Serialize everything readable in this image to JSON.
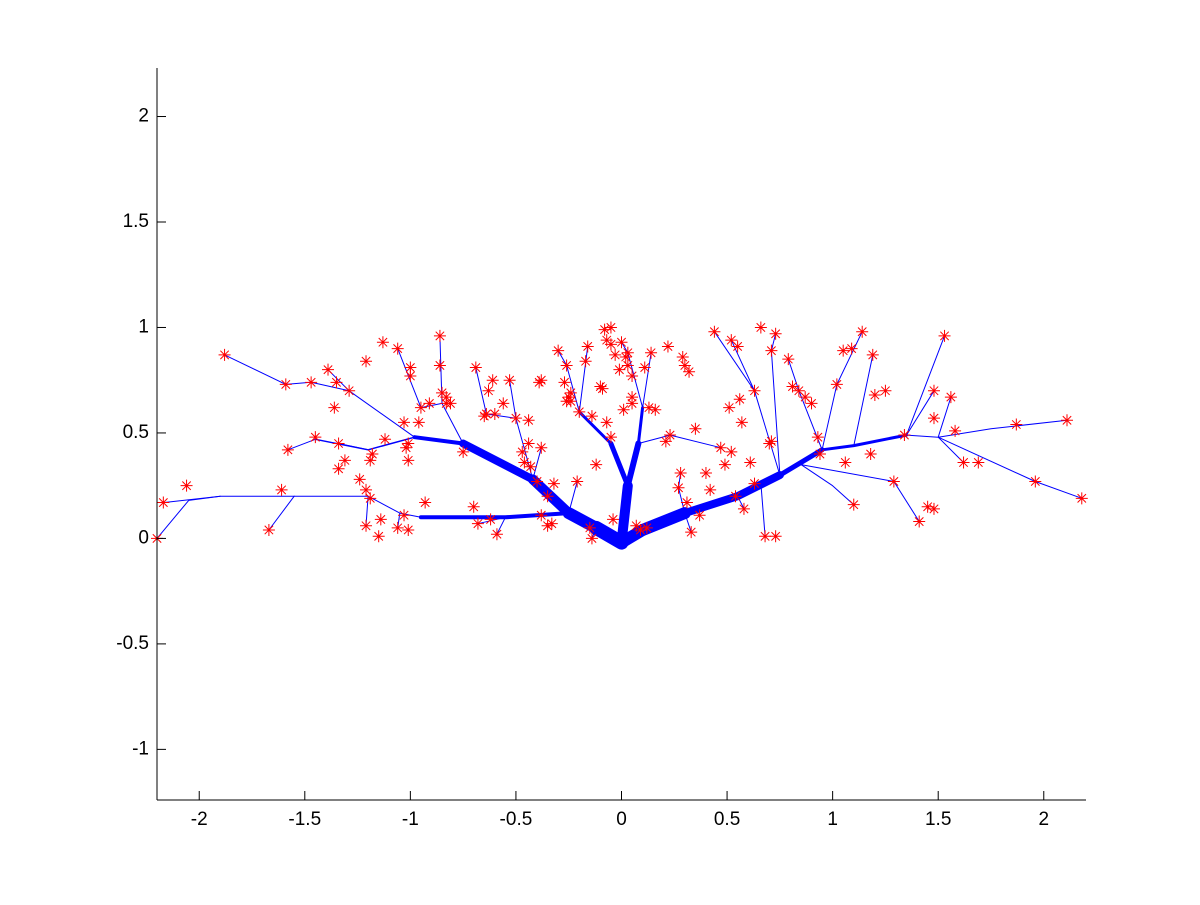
{
  "chart_data": {
    "type": "tree",
    "xlim": [
      -2.2,
      2.2
    ],
    "ylim": [
      -1.24,
      2.23
    ],
    "xticks": [
      -2,
      -1.5,
      -1,
      -0.5,
      0,
      0.5,
      1,
      1.5,
      2
    ],
    "yticks": [
      -1,
      -0.5,
      0,
      0.5,
      1,
      1.5,
      2
    ],
    "branch_color": "#0000ff",
    "branches": [
      {
        "x": [
          0,
          -0.12
        ],
        "y": [
          -0.02,
          0.05
        ],
        "width": 14
      },
      {
        "x": [
          -0.12,
          -0.25
        ],
        "y": [
          0.05,
          0.12
        ],
        "width": 12
      },
      {
        "x": [
          -0.25,
          -0.42
        ],
        "y": [
          0.12,
          0.28
        ],
        "width": 10
      },
      {
        "x": [
          -0.42,
          -0.75
        ],
        "y": [
          0.28,
          0.45
        ],
        "width": 8
      },
      {
        "x": [
          -0.75,
          -0.98
        ],
        "y": [
          0.45,
          0.48
        ],
        "width": 4
      },
      {
        "x": [
          -0.98,
          -1.2,
          -1.45
        ],
        "y": [
          0.48,
          0.42,
          0.47
        ],
        "width": 1.5
      },
      {
        "x": [
          -0.25,
          -0.55,
          -0.95
        ],
        "y": [
          0.12,
          0.1,
          0.1
        ],
        "width": 4
      },
      {
        "x": [
          -0.95,
          -1.05,
          -1.2,
          -1.55,
          -1.9,
          -2.05,
          -2.2
        ],
        "y": [
          0.1,
          0.12,
          0.2,
          0.2,
          0.2,
          0.18,
          0.0
        ],
        "width": 1
      },
      {
        "x": [
          0,
          0.1,
          0.3
        ],
        "y": [
          -0.02,
          0.04,
          0.12
        ],
        "width": 12
      },
      {
        "x": [
          0.3,
          0.55,
          0.75
        ],
        "y": [
          0.12,
          0.2,
          0.3
        ],
        "width": 8
      },
      {
        "x": [
          0.75,
          0.95
        ],
        "y": [
          0.3,
          0.42
        ],
        "width": 5
      },
      {
        "x": [
          0.95,
          1.1,
          1.35
        ],
        "y": [
          0.42,
          0.44,
          0.49
        ],
        "width": 3
      },
      {
        "x": [
          1.35,
          1.5,
          1.75,
          2.11
        ],
        "y": [
          0.49,
          0.48,
          0.52,
          0.56
        ],
        "width": 1
      },
      {
        "x": [
          1.5,
          1.96,
          2.18
        ],
        "y": [
          0.48,
          0.27,
          0.19
        ],
        "width": 1
      },
      {
        "x": [
          0,
          0.03
        ],
        "y": [
          -0.02,
          0.25
        ],
        "width": 10
      },
      {
        "x": [
          0.03,
          0.08
        ],
        "y": [
          0.25,
          0.45
        ],
        "width": 6
      },
      {
        "x": [
          0.08,
          0.1
        ],
        "y": [
          0.45,
          0.62
        ],
        "width": 3
      },
      {
        "x": [
          0.03,
          -0.05
        ],
        "y": [
          0.25,
          0.45
        ],
        "width": 5
      },
      {
        "x": [
          -0.05,
          -0.2
        ],
        "y": [
          0.45,
          0.6
        ],
        "width": 3
      },
      {
        "x": [
          -0.75,
          -0.85,
          -0.86
        ],
        "y": [
          0.45,
          0.64,
          0.96
        ],
        "width": 1
      },
      {
        "x": [
          -0.85,
          -0.95,
          -1.06
        ],
        "y": [
          0.64,
          0.62,
          0.9
        ],
        "width": 1
      },
      {
        "x": [
          -0.98,
          -1.29,
          -1.39
        ],
        "y": [
          0.48,
          0.7,
          0.8
        ],
        "width": 1
      },
      {
        "x": [
          -1.29,
          -1.47,
          -1.59,
          -1.88
        ],
        "y": [
          0.7,
          0.74,
          0.73,
          0.87
        ],
        "width": 1
      },
      {
        "x": [
          -1.2,
          -1.34
        ],
        "y": [
          0.42,
          0.45
        ],
        "width": 1
      },
      {
        "x": [
          -1.45,
          -1.58
        ],
        "y": [
          0.47,
          0.42
        ],
        "width": 1
      },
      {
        "x": [
          -1.2,
          -1.21
        ],
        "y": [
          0.2,
          0.06
        ],
        "width": 1
      },
      {
        "x": [
          -1.05,
          -1.06
        ],
        "y": [
          0.12,
          0.05
        ],
        "width": 1
      },
      {
        "x": [
          -1.9,
          -2.17
        ],
        "y": [
          0.2,
          0.17
        ],
        "width": 1
      },
      {
        "x": [
          -1.55,
          -1.67
        ],
        "y": [
          0.2,
          0.04
        ],
        "width": 1
      },
      {
        "x": [
          -0.42,
          -0.5,
          -0.53
        ],
        "y": [
          0.28,
          0.57,
          0.75
        ],
        "width": 1
      },
      {
        "x": [
          -0.5,
          -0.64,
          -0.69
        ],
        "y": [
          0.57,
          0.59,
          0.81
        ],
        "width": 1
      },
      {
        "x": [
          -0.55,
          -0.68
        ],
        "y": [
          0.1,
          0.07
        ],
        "width": 1
      },
      {
        "x": [
          -0.55,
          -0.59
        ],
        "y": [
          0.1,
          0.02
        ],
        "width": 1
      },
      {
        "x": [
          -0.25,
          -0.21
        ],
        "y": [
          0.12,
          0.27
        ],
        "width": 1
      },
      {
        "x": [
          -0.42,
          -0.38
        ],
        "y": [
          0.28,
          0.43
        ],
        "width": 1
      },
      {
        "x": [
          -0.2,
          -0.26,
          -0.3
        ],
        "y": [
          0.6,
          0.82,
          0.89
        ],
        "width": 1
      },
      {
        "x": [
          -0.2,
          -0.16
        ],
        "y": [
          0.6,
          0.91
        ],
        "width": 1
      },
      {
        "x": [
          0.1,
          0.14
        ],
        "y": [
          0.62,
          0.88
        ],
        "width": 1
      },
      {
        "x": [
          0.1,
          0.03,
          0.0
        ],
        "y": [
          0.62,
          0.88,
          0.93
        ],
        "width": 1
      },
      {
        "x": [
          0.08,
          0.23,
          0.47
        ],
        "y": [
          0.45,
          0.49,
          0.43
        ],
        "width": 1
      },
      {
        "x": [
          0.3,
          0.27,
          0.28
        ],
        "y": [
          0.12,
          0.24,
          0.31
        ],
        "width": 1
      },
      {
        "x": [
          0.3,
          0.33
        ],
        "y": [
          0.12,
          0.03
        ],
        "width": 1
      },
      {
        "x": [
          0.55,
          0.58
        ],
        "y": [
          0.2,
          0.14
        ],
        "width": 1
      },
      {
        "x": [
          0.75,
          0.63,
          0.44
        ],
        "y": [
          0.3,
          0.7,
          0.98
        ],
        "width": 1
      },
      {
        "x": [
          0.63,
          0.52
        ],
        "y": [
          0.7,
          0.94
        ],
        "width": 1
      },
      {
        "x": [
          0.75,
          0.71,
          0.73
        ],
        "y": [
          0.3,
          0.89,
          0.97
        ],
        "width": 1
      },
      {
        "x": [
          0.95,
          1.02,
          1.14
        ],
        "y": [
          0.42,
          0.73,
          0.98
        ],
        "width": 1
      },
      {
        "x": [
          0.95,
          0.84,
          0.79
        ],
        "y": [
          0.42,
          0.7,
          0.85
        ],
        "width": 1
      },
      {
        "x": [
          1.1,
          1.19
        ],
        "y": [
          0.44,
          0.87
        ],
        "width": 1
      },
      {
        "x": [
          1.35,
          1.53
        ],
        "y": [
          0.49,
          0.96
        ],
        "width": 1
      },
      {
        "x": [
          1.35,
          1.48
        ],
        "y": [
          0.49,
          0.7
        ],
        "width": 1
      },
      {
        "x": [
          1.5,
          1.62
        ],
        "y": [
          0.48,
          0.36
        ],
        "width": 1
      },
      {
        "x": [
          0.85,
          1.29,
          1.41
        ],
        "y": [
          0.35,
          0.27,
          0.08
        ],
        "width": 1
      },
      {
        "x": [
          0.85,
          1.0,
          1.1
        ],
        "y": [
          0.35,
          0.25,
          0.16
        ],
        "width": 1
      },
      {
        "x": [
          1.5,
          1.56
        ],
        "y": [
          0.48,
          0.67
        ],
        "width": 1
      },
      {
        "x": [
          0.66,
          0.68
        ],
        "y": [
          0.26,
          0.01
        ],
        "width": 1
      },
      {
        "x": [
          -0.12,
          -0.14
        ],
        "y": [
          0.05,
          0.0
        ],
        "width": 1
      }
    ],
    "points": {
      "color": "#ff0000",
      "x": [
        -2.2,
        -2.17,
        -2.06,
        -1.88,
        -1.67,
        -1.61,
        -1.59,
        -1.58,
        -1.47,
        -1.45,
        -1.39,
        -1.36,
        -1.35,
        -1.34,
        -1.34,
        -1.31,
        -1.29,
        -1.24,
        -1.21,
        -1.21,
        -1.19,
        -1.19,
        -1.18,
        -1.21,
        -1.15,
        -1.14,
        -1.13,
        -1.12,
        -1.06,
        -1.06,
        -1.03,
        -1.03,
        -1.02,
        -1.01,
        -1.01,
        -1.01,
        -1.0,
        -1.0,
        -0.96,
        -0.95,
        -0.93,
        -0.91,
        -0.86,
        -0.86,
        -0.85,
        -0.83,
        -0.83,
        -0.81,
        -0.75,
        -0.7,
        -0.69,
        -0.68,
        -0.65,
        -0.64,
        -0.63,
        -0.62,
        -0.61,
        -0.6,
        -0.59,
        -0.56,
        -0.53,
        -0.5,
        -0.47,
        -0.46,
        -0.44,
        -0.44,
        -0.43,
        -0.4,
        -0.39,
        -0.38,
        -0.38,
        -0.38,
        -0.35,
        -0.35,
        -0.33,
        -0.32,
        -0.3,
        -0.27,
        -0.26,
        -0.26,
        -0.25,
        -0.24,
        -0.24,
        -0.21,
        -0.2,
        -0.17,
        -0.16,
        -0.15,
        -0.14,
        -0.14,
        -0.12,
        -0.1,
        -0.09,
        -0.08,
        -0.07,
        -0.07,
        -0.05,
        -0.05,
        -0.05,
        -0.04,
        -0.03,
        -0.01,
        0.0,
        0.01,
        0.02,
        0.03,
        0.03,
        0.05,
        0.05,
        0.05,
        0.07,
        0.09,
        0.11,
        0.12,
        0.14,
        0.13,
        0.16,
        0.22,
        0.21,
        0.23,
        0.27,
        0.29,
        0.28,
        0.31,
        0.3,
        0.32,
        0.33,
        0.35,
        0.37,
        0.4,
        0.42,
        0.44,
        0.47,
        0.49,
        0.51,
        0.52,
        0.52,
        0.55,
        0.54,
        0.56,
        0.57,
        0.58,
        0.61,
        0.63,
        0.63,
        0.66,
        0.68,
        0.7,
        0.71,
        0.71,
        0.73,
        0.73,
        0.79,
        0.81,
        0.84,
        0.87,
        0.9,
        0.93,
        0.94,
        1.02,
        1.05,
        1.06,
        1.09,
        1.1,
        1.14,
        1.18,
        1.19,
        1.2,
        1.25,
        1.29,
        1.34,
        1.41,
        1.45,
        1.48,
        1.48,
        1.48,
        1.53,
        1.56,
        1.58,
        1.62,
        1.69,
        1.87,
        1.96,
        2.11,
        2.18
      ],
      "y": [
        0.0,
        0.17,
        0.25,
        0.87,
        0.04,
        0.23,
        0.73,
        0.42,
        0.74,
        0.48,
        0.8,
        0.62,
        0.74,
        0.45,
        0.33,
        0.37,
        0.7,
        0.28,
        0.23,
        0.84,
        0.19,
        0.37,
        0.4,
        0.06,
        0.01,
        0.09,
        0.93,
        0.47,
        0.05,
        0.9,
        0.11,
        0.55,
        0.43,
        0.37,
        0.04,
        0.45,
        0.81,
        0.77,
        0.55,
        0.62,
        0.17,
        0.64,
        0.96,
        0.82,
        0.69,
        0.64,
        0.67,
        0.64,
        0.41,
        0.15,
        0.81,
        0.07,
        0.58,
        0.59,
        0.7,
        0.09,
        0.75,
        0.59,
        0.02,
        0.64,
        0.75,
        0.57,
        0.41,
        0.36,
        0.45,
        0.56,
        0.34,
        0.27,
        0.74,
        0.75,
        0.43,
        0.11,
        0.06,
        0.2,
        0.07,
        0.26,
        0.89,
        0.74,
        0.65,
        0.82,
        0.67,
        0.65,
        0.69,
        0.27,
        0.6,
        0.84,
        0.91,
        0.05,
        0.0,
        0.58,
        0.35,
        0.72,
        0.71,
        0.99,
        0.94,
        0.55,
        1.0,
        0.92,
        0.48,
        0.09,
        0.87,
        0.8,
        0.93,
        0.61,
        0.86,
        0.88,
        0.82,
        0.77,
        0.67,
        0.64,
        0.06,
        0.04,
        0.81,
        0.05,
        0.88,
        0.62,
        0.61,
        0.91,
        0.46,
        0.49,
        0.24,
        0.86,
        0.31,
        0.17,
        0.82,
        0.79,
        0.03,
        0.52,
        0.11,
        0.31,
        0.23,
        0.98,
        0.43,
        0.35,
        0.62,
        0.41,
        0.94,
        0.91,
        0.2,
        0.66,
        0.55,
        0.14,
        0.36,
        0.7,
        0.26,
        1.0,
        0.01,
        0.45,
        0.89,
        0.46,
        0.97,
        0.01,
        0.85,
        0.72,
        0.7,
        0.67,
        0.64,
        0.48,
        0.4,
        0.73,
        0.89,
        0.36,
        0.9,
        0.16,
        0.98,
        0.4,
        0.87,
        0.68,
        0.7,
        0.27,
        0.49,
        0.08,
        0.15,
        0.14,
        0.57,
        0.7,
        0.96,
        0.67,
        0.51,
        0.36,
        0.36,
        0.54,
        0.27,
        0.56,
        0.19
      ]
    }
  }
}
